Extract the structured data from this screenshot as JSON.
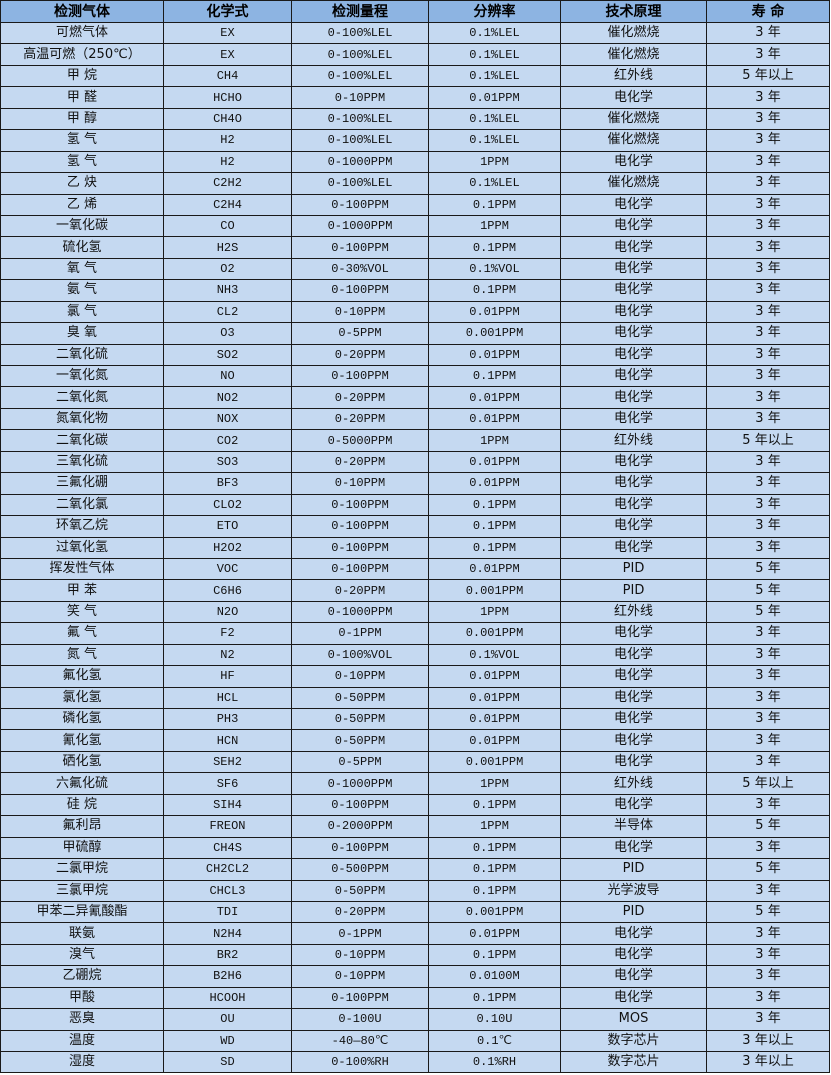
{
  "colors": {
    "header_bg": "#8db4e2",
    "row_bg": "#c5d9f1",
    "border": "#1a1a1a"
  },
  "table": {
    "headers": [
      "检测气体",
      "化学式",
      "检测量程",
      "分辨率",
      "技术原理",
      "寿 命"
    ],
    "rows": [
      [
        "可燃气体",
        "EX",
        "0-100%LEL",
        "0.1%LEL",
        "催化燃烧",
        "3 年"
      ],
      [
        "高温可燃（250℃）",
        "EX",
        "0-100%LEL",
        "0.1%LEL",
        "催化燃烧",
        "3 年"
      ],
      [
        "甲 烷",
        "CH4",
        "0-100%LEL",
        "0.1%LEL",
        "红外线",
        "5 年以上"
      ],
      [
        "甲 醛",
        "HCHO",
        "0-10PPM",
        "0.01PPM",
        "电化学",
        "3 年"
      ],
      [
        "甲 醇",
        "CH4O",
        "0-100%LEL",
        "0.1%LEL",
        "催化燃烧",
        "3 年"
      ],
      [
        "氢 气",
        "H2",
        "0-100%LEL",
        "0.1%LEL",
        "催化燃烧",
        "3 年"
      ],
      [
        "氢 气",
        "H2",
        "0-1000PPM",
        "1PPM",
        "电化学",
        "3 年"
      ],
      [
        "乙 炔",
        "C2H2",
        "0-100%LEL",
        "0.1%LEL",
        "催化燃烧",
        "3 年"
      ],
      [
        "乙 烯",
        "C2H4",
        "0-100PPM",
        "0.1PPM",
        "电化学",
        "3 年"
      ],
      [
        "一氧化碳",
        "CO",
        "0-1000PPM",
        "1PPM",
        "电化学",
        "3 年"
      ],
      [
        "硫化氢",
        "H2S",
        "0-100PPM",
        "0.1PPM",
        "电化学",
        "3 年"
      ],
      [
        "氧 气",
        "O2",
        "0-30%VOL",
        "0.1%VOL",
        "电化学",
        "3 年"
      ],
      [
        "氨 气",
        "NH3",
        "0-100PPM",
        "0.1PPM",
        "电化学",
        "3 年"
      ],
      [
        "氯 气",
        "CL2",
        "0-10PPM",
        "0.01PPM",
        "电化学",
        "3 年"
      ],
      [
        "臭 氧",
        "O3",
        "0-5PPM",
        "0.001PPM",
        "电化学",
        "3 年"
      ],
      [
        "二氧化硫",
        "SO2",
        "0-20PPM",
        "0.01PPM",
        "电化学",
        "3 年"
      ],
      [
        "一氧化氮",
        "NO",
        "0-100PPM",
        "0.1PPM",
        "电化学",
        "3 年"
      ],
      [
        "二氧化氮",
        "NO2",
        "0-20PPM",
        "0.01PPM",
        "电化学",
        "3 年"
      ],
      [
        "氮氧化物",
        "NOX",
        "0-20PPM",
        "0.01PPM",
        "电化学",
        "3 年"
      ],
      [
        "二氧化碳",
        "CO2",
        "0-5000PPM",
        "1PPM",
        "红外线",
        "5 年以上"
      ],
      [
        "三氧化硫",
        "SO3",
        "0-20PPM",
        "0.01PPM",
        "电化学",
        "3 年"
      ],
      [
        "三氟化硼",
        "BF3",
        "0-10PPM",
        "0.01PPM",
        "电化学",
        "3 年"
      ],
      [
        "二氧化氯",
        "CLO2",
        "0-100PPM",
        "0.1PPM",
        "电化学",
        "3 年"
      ],
      [
        "环氧乙烷",
        "ETO",
        "0-100PPM",
        "0.1PPM",
        "电化学",
        "3 年"
      ],
      [
        "过氧化氢",
        "H2O2",
        "0-100PPM",
        "0.1PPM",
        "电化学",
        "3 年"
      ],
      [
        "挥发性气体",
        "VOC",
        "0-100PPM",
        "0.01PPM",
        "PID",
        "5 年"
      ],
      [
        "甲 苯",
        "C6H6",
        "0-20PPM",
        "0.001PPM",
        "PID",
        "5 年"
      ],
      [
        "笑 气",
        "N2O",
        "0-1000PPM",
        "1PPM",
        "红外线",
        "5 年"
      ],
      [
        "氟 气",
        "F2",
        "0-1PPM",
        "0.001PPM",
        "电化学",
        "3 年"
      ],
      [
        "氮 气",
        "N2",
        "0-100%VOL",
        "0.1%VOL",
        "电化学",
        "3 年"
      ],
      [
        "氟化氢",
        "HF",
        "0-10PPM",
        "0.01PPM",
        "电化学",
        "3 年"
      ],
      [
        "氯化氢",
        "HCL",
        "0-50PPM",
        "0.01PPM",
        "电化学",
        "3 年"
      ],
      [
        "磷化氢",
        "PH3",
        "0-50PPM",
        "0.01PPM",
        "电化学",
        "3 年"
      ],
      [
        "氰化氢",
        "HCN",
        "0-50PPM",
        "0.01PPM",
        "电化学",
        "3 年"
      ],
      [
        "硒化氢",
        "SEH2",
        "0-5PPM",
        "0.001PPM",
        "电化学",
        "3 年"
      ],
      [
        "六氟化硫",
        "SF6",
        "0-1000PPM",
        "1PPM",
        "红外线",
        "5 年以上"
      ],
      [
        "硅 烷",
        "SIH4",
        "0-100PPM",
        "0.1PPM",
        "电化学",
        "3 年"
      ],
      [
        "氟利昂",
        "FREON",
        "0-2000PPM",
        "1PPM",
        "半导体",
        "5 年"
      ],
      [
        "甲硫醇",
        "CH4S",
        "0-100PPM",
        "0.1PPM",
        "电化学",
        "3 年"
      ],
      [
        "二氯甲烷",
        "CH2CL2",
        "0-500PPM",
        "0.1PPM",
        "PID",
        "5 年"
      ],
      [
        "三氯甲烷",
        "CHCL3",
        "0-50PPM",
        "0.1PPM",
        "光学波导",
        "3 年"
      ],
      [
        "甲苯二异氰酸酯",
        "TDI",
        "0-20PPM",
        "0.001PPM",
        "PID",
        "5 年"
      ],
      [
        "联氨",
        "N2H4",
        "0-1PPM",
        "0.01PPM",
        "电化学",
        "3 年"
      ],
      [
        "溴气",
        "BR2",
        "0-10PPM",
        "0.1PPM",
        "电化学",
        "3 年"
      ],
      [
        "乙硼烷",
        "B2H6",
        "0-10PPM",
        "0.0100M",
        "电化学",
        "3 年"
      ],
      [
        "甲酸",
        "HCOOH",
        "0-100PPM",
        "0.1PPM",
        "电化学",
        "3 年"
      ],
      [
        "恶臭",
        "OU",
        "0-100U",
        "0.10U",
        "MOS",
        "3 年"
      ],
      [
        "温度",
        "WD",
        "-40—80℃",
        "0.1℃",
        "数字芯片",
        "3 年以上"
      ],
      [
        "湿度",
        "SD",
        "0-100%RH",
        "0.1%RH",
        "数字芯片",
        "3 年以上"
      ]
    ]
  }
}
